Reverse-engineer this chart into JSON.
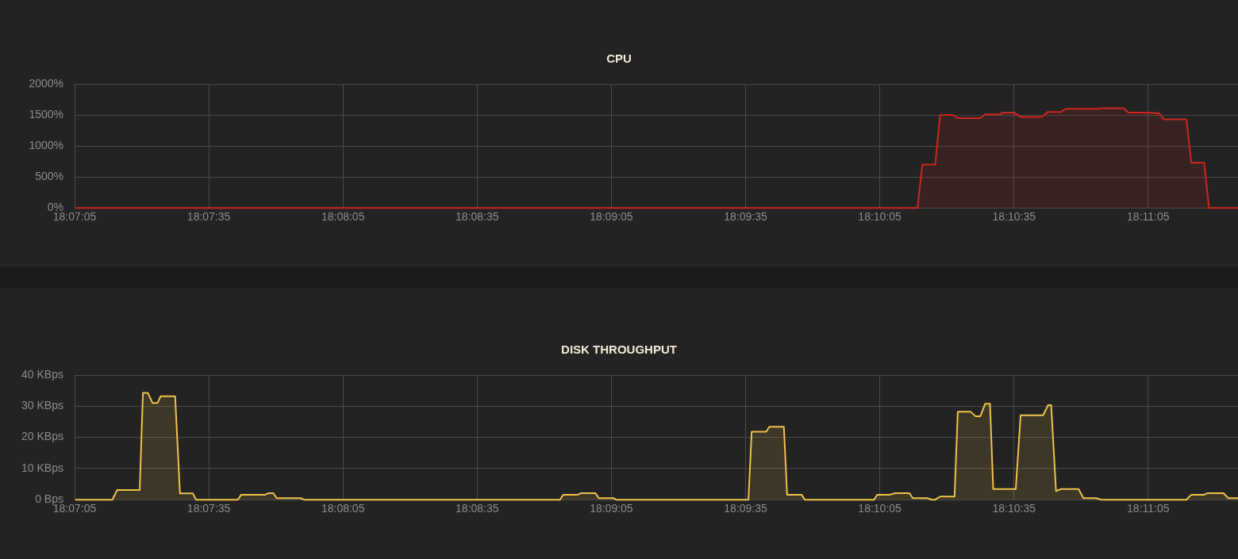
{
  "chart_data": [
    {
      "type": "area",
      "title": "CPU",
      "xlim": [
        18.118056,
        18.1903
      ],
      "ylim": [
        0,
        2000
      ],
      "grid": true,
      "marker": "none",
      "xticks": [
        {
          "value": 18.118056,
          "label": "18:07:05"
        },
        {
          "value": 18.126389,
          "label": "18:07:35"
        },
        {
          "value": 18.134722,
          "label": "18:08:05"
        },
        {
          "value": 18.143056,
          "label": "18:08:35"
        },
        {
          "value": 18.151389,
          "label": "18:09:05"
        },
        {
          "value": 18.159722,
          "label": "18:09:35"
        },
        {
          "value": 18.168056,
          "label": "18:10:05"
        },
        {
          "value": 18.176389,
          "label": "18:10:35"
        },
        {
          "value": 18.184722,
          "label": "18:11:05"
        }
      ],
      "yticks": [
        {
          "value": 0,
          "label": "0%"
        },
        {
          "value": 500,
          "label": "500%"
        },
        {
          "value": 1000,
          "label": "1000%"
        },
        {
          "value": 1500,
          "label": "1500%"
        },
        {
          "value": 2000,
          "label": "2000%"
        }
      ],
      "series": [
        {
          "color": "#d0261e",
          "x": [
            18.1181,
            18.1704,
            18.1707,
            18.1715,
            18.1718,
            18.1726,
            18.1729,
            18.1743,
            18.1746,
            18.1755,
            18.1757,
            18.1764,
            18.1768,
            18.1781,
            18.1785,
            18.1793,
            18.1796,
            18.1816,
            18.1818,
            18.1832,
            18.1835,
            18.1844,
            18.1854,
            18.1857,
            18.1871,
            18.1874,
            18.1882,
            18.1885,
            18.1903
          ],
          "values": [
            0,
            0,
            700,
            700,
            1500,
            1500,
            1450,
            1450,
            1510,
            1510,
            1540,
            1540,
            1470,
            1470,
            1550,
            1550,
            1600,
            1600,
            1610,
            1610,
            1540,
            1540,
            1530,
            1430,
            1430,
            730,
            730,
            0,
            0
          ]
        }
      ]
    },
    {
      "type": "area",
      "title": "DISK THROUGHPUT",
      "xlim": [
        18.118056,
        18.1903
      ],
      "ylim": [
        0,
        40
      ],
      "grid": true,
      "marker": "none",
      "xticks": [
        {
          "value": 18.118056,
          "label": "18:07:05"
        },
        {
          "value": 18.126389,
          "label": "18:07:35"
        },
        {
          "value": 18.134722,
          "label": "18:08:05"
        },
        {
          "value": 18.143056,
          "label": "18:08:35"
        },
        {
          "value": 18.151389,
          "label": "18:09:05"
        },
        {
          "value": 18.159722,
          "label": "18:09:35"
        },
        {
          "value": 18.168056,
          "label": "18:10:05"
        },
        {
          "value": 18.176389,
          "label": "18:10:35"
        },
        {
          "value": 18.184722,
          "label": "18:11:05"
        }
      ],
      "yticks": [
        {
          "value": 0,
          "label": "0 Bps"
        },
        {
          "value": 10,
          "label": "10 KBps"
        },
        {
          "value": 20,
          "label": "20 KBps"
        },
        {
          "value": 30,
          "label": "30 KBps"
        },
        {
          "value": 40,
          "label": "40 KBps"
        }
      ],
      "series": [
        {
          "color": "#f0c24a",
          "x": [
            18.1181,
            18.1204,
            18.1207,
            18.1221,
            18.1223,
            18.1226,
            18.1229,
            18.1232,
            18.1234,
            18.1243,
            18.1246,
            18.1254,
            18.1256,
            18.1282,
            18.1284,
            18.1299,
            18.1301,
            18.1304,
            18.1306,
            18.1321,
            18.1323,
            18.1482,
            18.1484,
            18.1493,
            18.1495,
            18.1504,
            18.1506,
            18.1515,
            18.1517,
            18.1599,
            18.1601,
            18.161,
            18.1612,
            18.1621,
            18.1623,
            18.1632,
            18.1634,
            18.1677,
            18.1679,
            18.1687,
            18.169,
            18.1699,
            18.1701,
            18.171,
            18.1713,
            18.1715,
            18.1718,
            18.1727,
            18.1729,
            18.1737,
            18.174,
            18.1743,
            18.1746,
            18.1749,
            18.1751,
            18.1765,
            18.1768,
            18.1782,
            18.1785,
            18.1787,
            18.179,
            18.1793,
            18.1804,
            18.1807,
            18.1815,
            18.1818,
            18.1871,
            18.1874,
            18.1882,
            18.1884,
            18.1894,
            18.1897,
            18.1903
          ],
          "values": [
            0,
            0,
            3.1,
            3.1,
            34.3,
            34.3,
            31.0,
            31.0,
            33.2,
            33.2,
            2.0,
            2.0,
            0,
            0,
            1.6,
            1.6,
            2.1,
            2.1,
            0.5,
            0.5,
            0,
            0,
            1.6,
            1.6,
            2.1,
            2.1,
            0.5,
            0.5,
            0,
            0,
            21.8,
            21.8,
            23.4,
            23.4,
            1.6,
            1.6,
            0,
            0,
            1.6,
            1.6,
            2.1,
            2.1,
            0.5,
            0.5,
            0,
            0,
            1.0,
            1.0,
            28.2,
            28.2,
            26.8,
            26.8,
            30.8,
            30.8,
            3.4,
            3.4,
            27.1,
            27.1,
            30.3,
            30.3,
            2.8,
            3.4,
            3.4,
            0.5,
            0.5,
            0,
            0,
            1.6,
            1.6,
            2.1,
            2.1,
            0.5,
            0.5
          ]
        }
      ]
    }
  ]
}
